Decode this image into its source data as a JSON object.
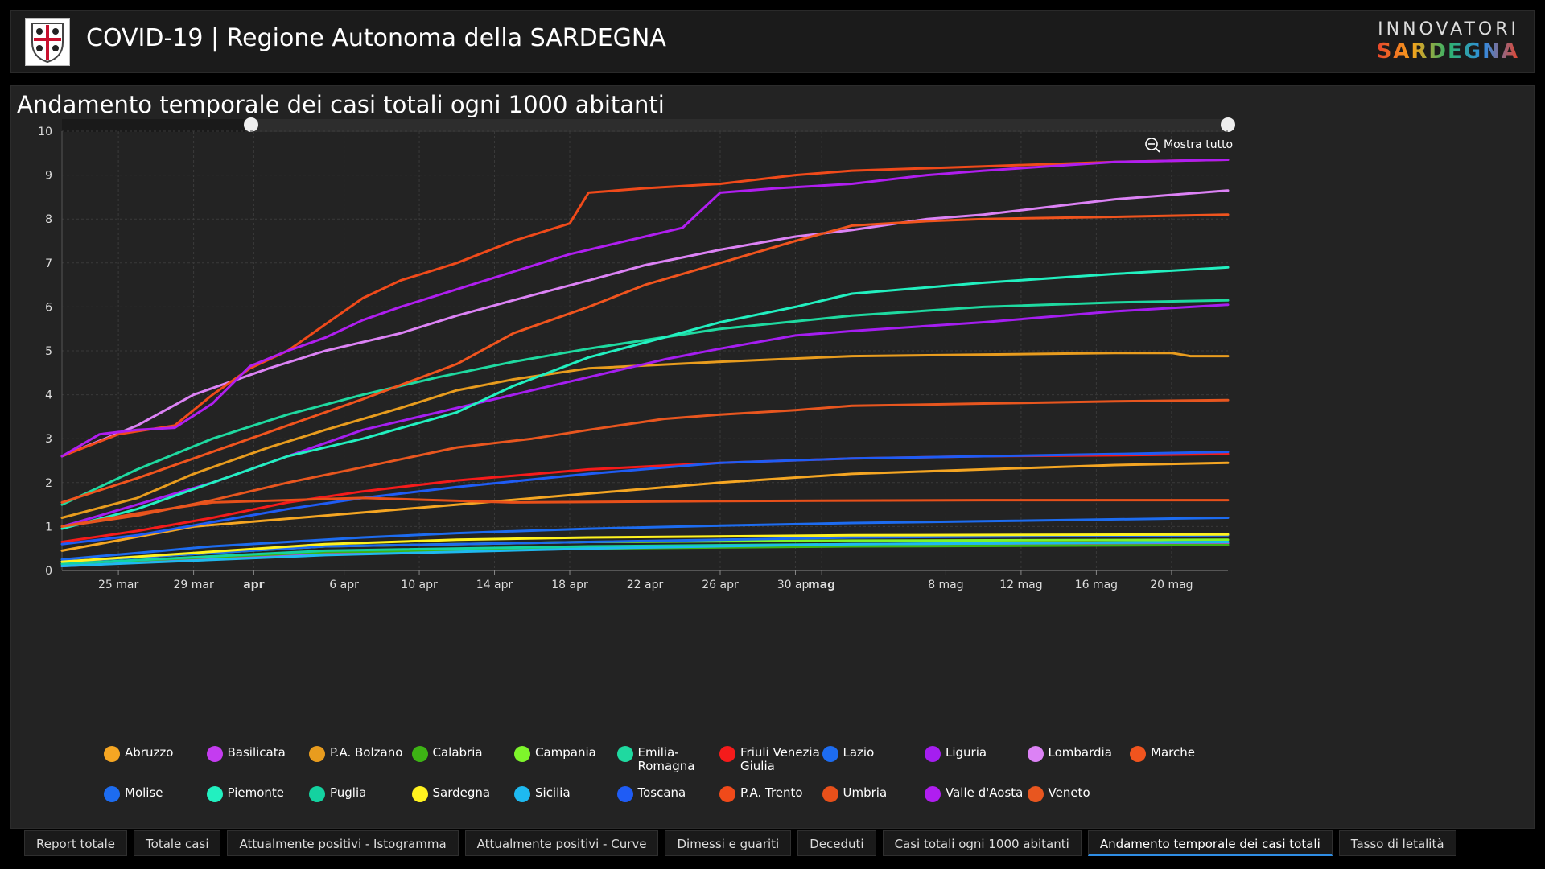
{
  "header": {
    "title": "COVID-19 | Regione Autonoma della SARDEGNA",
    "brand_top": "INNOVATORI",
    "brand_bottom": "SARDEGNA"
  },
  "panel": {
    "title": "Andamento temporale dei casi totali ogni 1000 abitanti",
    "zoom_label": "Mostra tutto"
  },
  "chart_data": {
    "type": "line",
    "x_ticks": [
      "25 mar",
      "29 mar",
      "apr",
      "6 apr",
      "10 apr",
      "14 apr",
      "18 apr",
      "22 apr",
      "26 apr",
      "30 apr",
      "mag",
      "8 mag",
      "12 mag",
      "16 mag",
      "20 mag"
    ],
    "y_ticks": [
      "0",
      "1",
      "2",
      "3",
      "4",
      "5",
      "6",
      "7",
      "8",
      "9",
      "10"
    ],
    "x_range": [
      "2020-03-22",
      "2020-05-23"
    ],
    "ylim": [
      0,
      10
    ],
    "grid": true,
    "series": [
      {
        "name": "Abruzzo",
        "color": "#f5a623",
        "points": [
          [
            0,
            0.45
          ],
          [
            7,
            1.0
          ],
          [
            14,
            1.25
          ],
          [
            21,
            1.5
          ],
          [
            28,
            1.75
          ],
          [
            35,
            2.0
          ],
          [
            42,
            2.2
          ],
          [
            49,
            2.3
          ],
          [
            56,
            2.4
          ],
          [
            62,
            2.45
          ]
        ]
      },
      {
        "name": "Basilicata",
        "color": "#c43cf0",
        "points": [
          [
            0,
            0.1
          ],
          [
            14,
            0.38
          ],
          [
            28,
            0.5
          ],
          [
            42,
            0.58
          ],
          [
            62,
            0.62
          ]
        ]
      },
      {
        "name": "P.A. Bolzano",
        "color": "#e89c1e",
        "points": [
          [
            0,
            1.2
          ],
          [
            4,
            1.65
          ],
          [
            7,
            2.2
          ],
          [
            11,
            2.8
          ],
          [
            14,
            3.2
          ],
          [
            18,
            3.7
          ],
          [
            21,
            4.1
          ],
          [
            24,
            4.35
          ],
          [
            28,
            4.6
          ],
          [
            35,
            4.75
          ],
          [
            42,
            4.88
          ],
          [
            56,
            4.95
          ],
          [
            59,
            4.95
          ],
          [
            60,
            4.88
          ],
          [
            62,
            4.88
          ]
        ]
      },
      {
        "name": "Calabria",
        "color": "#3db314",
        "points": [
          [
            0,
            0.15
          ],
          [
            14,
            0.42
          ],
          [
            28,
            0.5
          ],
          [
            42,
            0.55
          ],
          [
            62,
            0.58
          ]
        ]
      },
      {
        "name": "Campania",
        "color": "#7ef52b",
        "points": [
          [
            0,
            0.2
          ],
          [
            14,
            0.55
          ],
          [
            28,
            0.65
          ],
          [
            42,
            0.68
          ],
          [
            62,
            0.7
          ]
        ]
      },
      {
        "name": "Emilia-Romagna",
        "color": "#1fd9a0",
        "points": [
          [
            0,
            1.5
          ],
          [
            4,
            2.3
          ],
          [
            8,
            3.0
          ],
          [
            12,
            3.55
          ],
          [
            16,
            4.0
          ],
          [
            20,
            4.4
          ],
          [
            24,
            4.75
          ],
          [
            28,
            5.05
          ],
          [
            35,
            5.5
          ],
          [
            42,
            5.8
          ],
          [
            49,
            6.0
          ],
          [
            56,
            6.1
          ],
          [
            62,
            6.15
          ]
        ]
      },
      {
        "name": "Friuli Venezia Giulia",
        "color": "#f51b1b",
        "points": [
          [
            0,
            0.65
          ],
          [
            4,
            0.9
          ],
          [
            8,
            1.2
          ],
          [
            12,
            1.55
          ],
          [
            16,
            1.8
          ],
          [
            21,
            2.05
          ],
          [
            28,
            2.3
          ],
          [
            35,
            2.45
          ],
          [
            42,
            2.55
          ],
          [
            49,
            2.6
          ],
          [
            56,
            2.62
          ],
          [
            62,
            2.65
          ]
        ]
      },
      {
        "name": "Lazio",
        "color": "#1d6cf0",
        "points": [
          [
            0,
            0.25
          ],
          [
            4,
            0.4
          ],
          [
            8,
            0.55
          ],
          [
            12,
            0.65
          ],
          [
            16,
            0.75
          ],
          [
            21,
            0.85
          ],
          [
            28,
            0.95
          ],
          [
            35,
            1.02
          ],
          [
            42,
            1.08
          ],
          [
            49,
            1.12
          ],
          [
            62,
            1.2
          ]
        ]
      },
      {
        "name": "Liguria",
        "color": "#a51ef0",
        "points": [
          [
            0,
            1.0
          ],
          [
            4,
            1.5
          ],
          [
            8,
            2.0
          ],
          [
            12,
            2.6
          ],
          [
            16,
            3.2
          ],
          [
            21,
            3.7
          ],
          [
            25,
            4.1
          ],
          [
            28,
            4.4
          ],
          [
            32,
            4.8
          ],
          [
            35,
            5.05
          ],
          [
            39,
            5.35
          ],
          [
            42,
            5.45
          ],
          [
            49,
            5.65
          ],
          [
            56,
            5.9
          ],
          [
            62,
            6.05
          ]
        ]
      },
      {
        "name": "Lombardia",
        "color": "#dc82f5",
        "points": [
          [
            0,
            2.6
          ],
          [
            4,
            3.3
          ],
          [
            7,
            4.0
          ],
          [
            11,
            4.6
          ],
          [
            14,
            5.0
          ],
          [
            18,
            5.4
          ],
          [
            21,
            5.8
          ],
          [
            24,
            6.15
          ],
          [
            28,
            6.6
          ],
          [
            31,
            6.95
          ],
          [
            35,
            7.3
          ],
          [
            39,
            7.6
          ],
          [
            42,
            7.75
          ],
          [
            46,
            8.0
          ],
          [
            49,
            8.1
          ],
          [
            53,
            8.3
          ],
          [
            56,
            8.45
          ],
          [
            62,
            8.65
          ]
        ]
      },
      {
        "name": "Marche",
        "color": "#f0541e",
        "points": [
          [
            0,
            1.55
          ],
          [
            4,
            2.1
          ],
          [
            8,
            2.7
          ],
          [
            12,
            3.3
          ],
          [
            16,
            3.9
          ],
          [
            21,
            4.7
          ],
          [
            24,
            5.4
          ],
          [
            28,
            6.0
          ],
          [
            31,
            6.5
          ],
          [
            35,
            7.0
          ],
          [
            39,
            7.5
          ],
          [
            42,
            7.85
          ],
          [
            46,
            7.95
          ],
          [
            49,
            8.0
          ],
          [
            56,
            8.05
          ],
          [
            62,
            8.1
          ]
        ]
      },
      {
        "name": "Molise",
        "color": "#1d6cf0",
        "points": [
          [
            0,
            0.2
          ],
          [
            14,
            0.55
          ],
          [
            28,
            0.65
          ],
          [
            42,
            0.75
          ],
          [
            62,
            0.8
          ]
        ]
      },
      {
        "name": "Piemonte",
        "color": "#22f0c0",
        "points": [
          [
            0,
            0.95
          ],
          [
            4,
            1.4
          ],
          [
            8,
            2.0
          ],
          [
            12,
            2.6
          ],
          [
            16,
            3.0
          ],
          [
            21,
            3.6
          ],
          [
            24,
            4.2
          ],
          [
            28,
            4.85
          ],
          [
            32,
            5.3
          ],
          [
            35,
            5.65
          ],
          [
            39,
            6.0
          ],
          [
            42,
            6.3
          ],
          [
            49,
            6.55
          ],
          [
            56,
            6.75
          ],
          [
            62,
            6.9
          ]
        ]
      },
      {
        "name": "Puglia",
        "color": "#14d2a0",
        "points": [
          [
            0,
            0.15
          ],
          [
            14,
            0.45
          ],
          [
            28,
            0.55
          ],
          [
            42,
            0.6
          ],
          [
            62,
            0.65
          ]
        ]
      },
      {
        "name": "Sardegna",
        "color": "#fff21f",
        "points": [
          [
            0,
            0.2
          ],
          [
            7,
            0.4
          ],
          [
            14,
            0.6
          ],
          [
            21,
            0.7
          ],
          [
            28,
            0.75
          ],
          [
            42,
            0.8
          ],
          [
            62,
            0.82
          ]
        ]
      },
      {
        "name": "Sicilia",
        "color": "#1eb9f0",
        "points": [
          [
            0,
            0.1
          ],
          [
            14,
            0.35
          ],
          [
            28,
            0.5
          ],
          [
            42,
            0.6
          ],
          [
            62,
            0.65
          ]
        ]
      },
      {
        "name": "Toscana",
        "color": "#1f5cf5",
        "points": [
          [
            0,
            0.6
          ],
          [
            4,
            0.8
          ],
          [
            8,
            1.1
          ],
          [
            12,
            1.4
          ],
          [
            16,
            1.65
          ],
          [
            21,
            1.9
          ],
          [
            28,
            2.2
          ],
          [
            35,
            2.45
          ],
          [
            42,
            2.55
          ],
          [
            49,
            2.6
          ],
          [
            56,
            2.65
          ],
          [
            62,
            2.7
          ]
        ]
      },
      {
        "name": "P.A. Trento",
        "color": "#f04a1a",
        "points": [
          [
            0,
            2.6
          ],
          [
            3,
            3.1
          ],
          [
            6,
            3.3
          ],
          [
            8,
            4.0
          ],
          [
            10,
            4.6
          ],
          [
            12,
            5.0
          ],
          [
            14,
            5.6
          ],
          [
            16,
            6.2
          ],
          [
            18,
            6.6
          ],
          [
            21,
            7.0
          ],
          [
            24,
            7.5
          ],
          [
            27,
            7.9
          ],
          [
            28,
            8.6
          ],
          [
            31,
            8.7
          ],
          [
            35,
            8.8
          ],
          [
            39,
            9.0
          ],
          [
            42,
            9.1
          ],
          [
            49,
            9.2
          ],
          [
            56,
            9.3
          ],
          [
            62,
            9.35
          ]
        ]
      },
      {
        "name": "Umbria",
        "color": "#e8501a",
        "points": [
          [
            0,
            1.0
          ],
          [
            4,
            1.3
          ],
          [
            8,
            1.55
          ],
          [
            12,
            1.6
          ],
          [
            16,
            1.65
          ],
          [
            24,
            1.55
          ],
          [
            35,
            1.58
          ],
          [
            49,
            1.6
          ],
          [
            62,
            1.6
          ]
        ]
      },
      {
        "name": "Valle d'Aosta",
        "color": "#b01ef0",
        "points": [
          [
            0,
            2.6
          ],
          [
            2,
            3.1
          ],
          [
            4,
            3.2
          ],
          [
            6,
            3.25
          ],
          [
            8,
            3.8
          ],
          [
            10,
            4.65
          ],
          [
            12,
            5.0
          ],
          [
            14,
            5.3
          ],
          [
            16,
            5.7
          ],
          [
            18,
            6.0
          ],
          [
            21,
            6.4
          ],
          [
            24,
            6.8
          ],
          [
            27,
            7.2
          ],
          [
            30,
            7.5
          ],
          [
            33,
            7.8
          ],
          [
            35,
            8.6
          ],
          [
            38,
            8.7
          ],
          [
            42,
            8.8
          ],
          [
            46,
            9.0
          ],
          [
            49,
            9.1
          ],
          [
            56,
            9.3
          ],
          [
            62,
            9.35
          ]
        ]
      },
      {
        "name": "Veneto",
        "color": "#e8561f",
        "points": [
          [
            0,
            1.0
          ],
          [
            4,
            1.25
          ],
          [
            8,
            1.6
          ],
          [
            12,
            2.0
          ],
          [
            16,
            2.35
          ],
          [
            21,
            2.8
          ],
          [
            25,
            3.0
          ],
          [
            28,
            3.2
          ],
          [
            32,
            3.45
          ],
          [
            35,
            3.55
          ],
          [
            39,
            3.65
          ],
          [
            42,
            3.75
          ],
          [
            49,
            3.8
          ],
          [
            56,
            3.85
          ],
          [
            62,
            3.88
          ]
        ]
      }
    ]
  },
  "tabs": [
    {
      "label": "Report totale",
      "active": false
    },
    {
      "label": "Totale casi",
      "active": false
    },
    {
      "label": "Attualmente positivi - Istogramma",
      "active": false
    },
    {
      "label": "Attualmente positivi - Curve",
      "active": false
    },
    {
      "label": "Dimessi e guariti",
      "active": false
    },
    {
      "label": "Deceduti",
      "active": false
    },
    {
      "label": "Casi totali ogni 1000 abitanti",
      "active": false
    },
    {
      "label": "Andamento temporale dei casi totali",
      "active": true
    },
    {
      "label": "Tasso di letalità",
      "active": false
    }
  ]
}
